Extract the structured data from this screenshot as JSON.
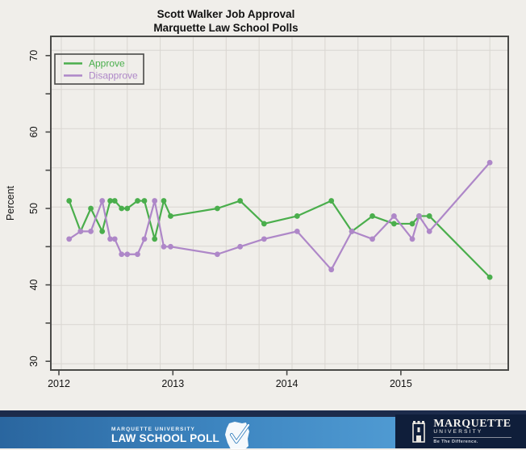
{
  "title": {
    "line1": "Scott Walker Job Approval",
    "line2": "Marquette Law School Polls"
  },
  "chart_data": {
    "type": "line",
    "title": "Scott Walker Job Approval — Marquette Law School Polls",
    "xlabel": "",
    "ylabel": "Percent",
    "x_ticks": [
      2012,
      2013,
      2014,
      2015
    ],
    "y_ticks_labeled": [
      30,
      40,
      50,
      60,
      70
    ],
    "y_ticks_minor": [
      35,
      45,
      55,
      65
    ],
    "ylim": [
      29,
      72
    ],
    "xlim": [
      2011.93,
      2015.94
    ],
    "grid": "graph-paper background grid, unaligned with ticks",
    "legend_position": "top-left",
    "legend": [
      {
        "label": "Approve",
        "color": "#4aae4c"
      },
      {
        "label": "Disapprove",
        "color": "#ae87c8"
      }
    ],
    "x_year": [
      2012.09,
      2012.19,
      2012.28,
      2012.38,
      2012.45,
      2012.49,
      2012.55,
      2012.6,
      2012.69,
      2012.75,
      2012.84,
      2012.92,
      2012.98,
      2013.39,
      2013.59,
      2013.8,
      2014.09,
      2014.39,
      2014.57,
      2014.75,
      2014.94,
      2015.1,
      2015.16,
      2015.25,
      2015.78
    ],
    "series": [
      {
        "name": "Approve",
        "color": "#4aae4c",
        "values": [
          51,
          47,
          50,
          47,
          51,
          51,
          50,
          50,
          51,
          51,
          46,
          51,
          49,
          50,
          51,
          48,
          49,
          51,
          47,
          49,
          48,
          48,
          49,
          49,
          41
        ]
      },
      {
        "name": "Disapprove",
        "color": "#ae87c8",
        "values": [
          46,
          47,
          47,
          51,
          46,
          46,
          44,
          44,
          44,
          46,
          51,
          45,
          45,
          44,
          45,
          46,
          47,
          42,
          47,
          46,
          49,
          46,
          49,
          47,
          56
        ]
      }
    ]
  },
  "footer": {
    "law_poll_line1": "MARQUETTE UNIVERSITY",
    "law_poll_line2": "LAW SCHOOL POLL",
    "mu_name": "MARQUETTE",
    "mu_univ": "UNIVERSITY",
    "mu_tagline": "Be The Difference."
  },
  "colors": {
    "background": "#f0eeea",
    "frame": "#4a4a48",
    "gridline": "#d9d6d1",
    "text": "#141414",
    "approve": "#4aae4c",
    "disapprove": "#ae87c8",
    "footer_strip": "#1c2b4b",
    "footer_left_blue": "#3d85c0",
    "footer_right_navy": "#0f1e3a"
  }
}
